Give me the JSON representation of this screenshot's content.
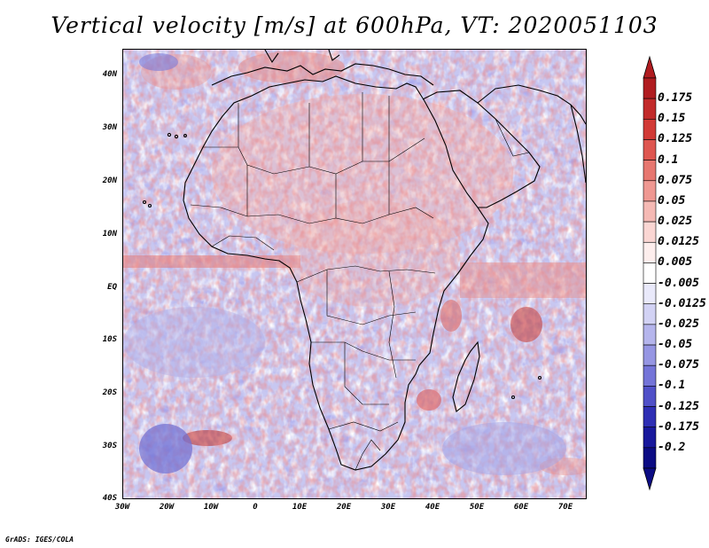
{
  "title": "Vertical velocity [m/s] at 600hPa, VT: 2020051103",
  "credit": "GrADS: IGES/COLA",
  "map": {
    "lon_labels": [
      "30W",
      "20W",
      "10W",
      "0",
      "10E",
      "20E",
      "30E",
      "40E",
      "50E",
      "60E",
      "70E"
    ],
    "lat_labels": [
      "40N",
      "30N",
      "20N",
      "10N",
      "EQ",
      "10S",
      "20S",
      "30S",
      "40S"
    ]
  },
  "colorbar": {
    "labels": [
      "0.175",
      "0.15",
      "0.125",
      "0.1",
      "0.075",
      "0.05",
      "0.025",
      "0.0125",
      "0.005",
      "-0.005",
      "-0.0125",
      "-0.025",
      "-0.05",
      "-0.075",
      "-0.1",
      "-0.125",
      "-0.175",
      "-0.2"
    ],
    "colors": [
      "#b01c20",
      "#c22a2a",
      "#d23a36",
      "#de5650",
      "#e77770",
      "#ef9892",
      "#f5b9b4",
      "#fad6d3",
      "#fdeeed",
      "#ffffff",
      "#e9e9fa",
      "#d2d2f4",
      "#b5b5ec",
      "#9696e3",
      "#7474d8",
      "#5050c8",
      "#2e2eb4",
      "#18189c",
      "#0c0c84"
    ]
  },
  "chart_data": {
    "type": "heatmap",
    "title": "Vertical velocity [m/s] at 600hPa, VT: 2020051103",
    "variable": "Vertical velocity",
    "units": "m/s",
    "level": "600hPa",
    "valid_time": "2020051103",
    "lon_range": [
      "30W",
      "75E"
    ],
    "lat_range": [
      "40S",
      "45N"
    ],
    "contour_levels": [
      -0.2,
      -0.175,
      -0.125,
      -0.1,
      -0.075,
      -0.05,
      -0.025,
      -0.0125,
      -0.005,
      0.005,
      0.0125,
      0.025,
      0.05,
      0.075,
      0.1,
      0.125,
      0.15,
      0.175
    ]
  }
}
